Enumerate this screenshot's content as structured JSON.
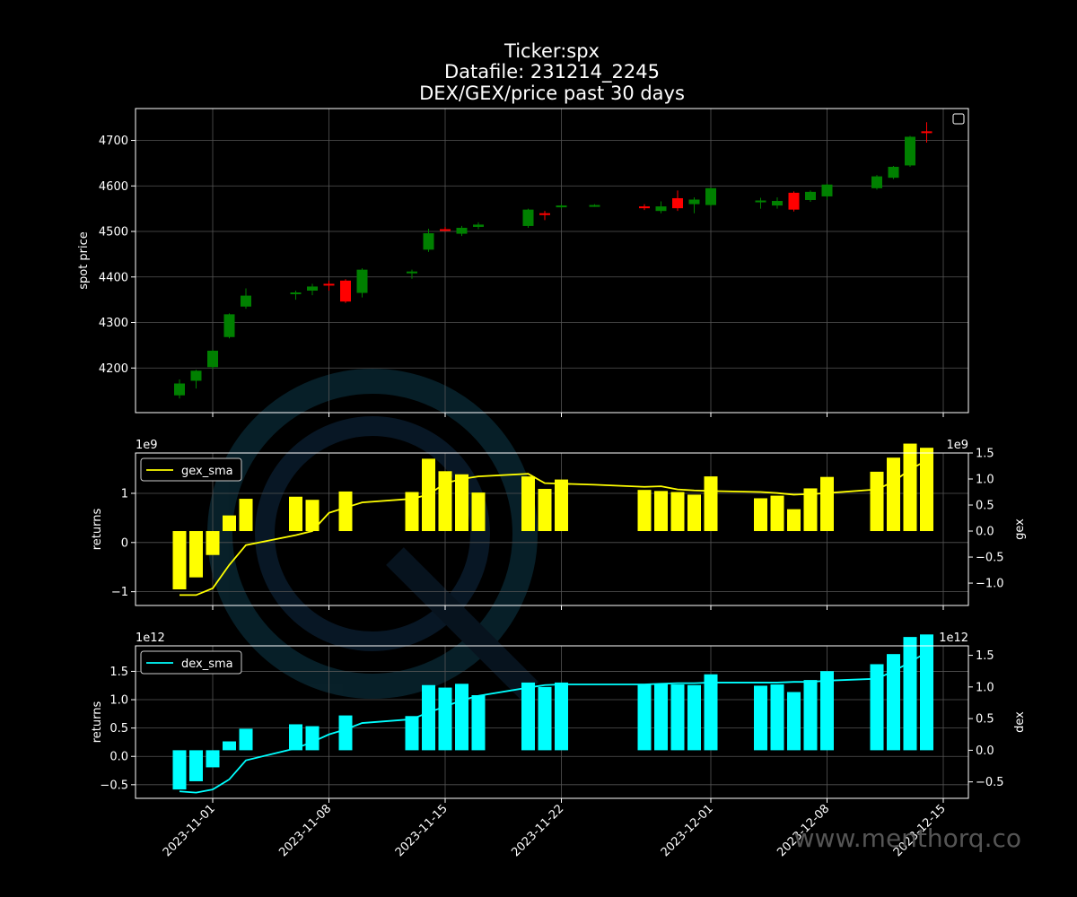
{
  "title": {
    "line1": "Ticker:spx",
    "line2": "Datafile: 231214_2245",
    "line3": "DEX/GEX/price past 30 days"
  },
  "watermark": "www.menthorq.co",
  "colors": {
    "background": "#000000",
    "axes": "#ffffff",
    "grid": "#555555",
    "candle_up": "#008000",
    "candle_down": "#ff0000",
    "gex_bar": "#ffff00",
    "gex_line": "#ffff00",
    "dex_bar": "#00ffff",
    "dex_line": "#00ffff"
  },
  "chart_data": [
    {
      "type": "candlestick",
      "ylabel": "spot price",
      "yticks": [
        4200,
        4300,
        4400,
        4500,
        4600,
        4700
      ],
      "ylim": [
        4102,
        4770
      ],
      "grid": true,
      "legend": "top-right, empty",
      "x_dates": [
        "2023-10-30",
        "2023-10-31",
        "2023-11-01",
        "2023-11-02",
        "2023-11-03",
        "2023-11-06",
        "2023-11-07",
        "2023-11-08",
        "2023-11-09",
        "2023-11-10",
        "2023-11-13",
        "2023-11-14",
        "2023-11-15",
        "2023-11-16",
        "2023-11-17",
        "2023-11-20",
        "2023-11-21",
        "2023-11-22",
        "2023-11-24",
        "2023-11-27",
        "2023-11-28",
        "2023-11-29",
        "2023-11-30",
        "2023-12-01",
        "2023-12-04",
        "2023-12-05",
        "2023-12-06",
        "2023-12-07",
        "2023-12-08",
        "2023-12-11",
        "2023-12-12",
        "2023-12-13",
        "2023-12-14"
      ],
      "open": [
        4140,
        4172,
        4202,
        4268,
        4335,
        4363,
        4370,
        4385,
        4392,
        4365,
        4408,
        4460,
        4505,
        4495,
        4510,
        4512,
        4540,
        4553,
        4556,
        4555,
        4545,
        4573,
        4560,
        4558,
        4564,
        4557,
        4585,
        4569,
        4577,
        4595,
        4618,
        4645,
        4720
      ],
      "close": [
        4166,
        4194,
        4238,
        4318,
        4359,
        4366,
        4379,
        4384,
        4346,
        4416,
        4412,
        4496,
        4502,
        4508,
        4515,
        4548,
        4538,
        4557,
        4558,
        4551,
        4555,
        4551,
        4570,
        4595,
        4568,
        4567,
        4548,
        4587,
        4603,
        4621,
        4642,
        4708,
        4719
      ],
      "high": [
        4175,
        4196,
        4240,
        4320,
        4375,
        4370,
        4385,
        4392,
        4395,
        4419,
        4416,
        4506,
        4510,
        4512,
        4520,
        4550,
        4545,
        4560,
        4560,
        4560,
        4566,
        4590,
        4575,
        4596,
        4574,
        4575,
        4588,
        4590,
        4605,
        4624,
        4644,
        4710,
        4740
      ],
      "low": [
        4133,
        4155,
        4198,
        4265,
        4330,
        4350,
        4360,
        4370,
        4343,
        4355,
        4396,
        4455,
        4500,
        4490,
        4505,
        4508,
        4525,
        4550,
        4554,
        4547,
        4540,
        4545,
        4540,
        4555,
        4550,
        4550,
        4544,
        4565,
        4570,
        4592,
        4615,
        4642,
        4695
      ]
    },
    {
      "type": "bar",
      "ylabel": "returns",
      "ylabel_right": "gex",
      "left_exponent": "1e9",
      "right_exponent": "1e9",
      "yticks_left": [
        -1,
        0,
        1
      ],
      "yticks_right": [
        -1.0,
        -0.5,
        0.0,
        0.5,
        1.0,
        1.5
      ],
      "ylim_left": [
        -1.28,
        1.82
      ],
      "ylim_right": [
        -1.43,
        1.5
      ],
      "grid": true,
      "legend": "top-left",
      "series": [
        {
          "name": "gex_sma",
          "type": "line",
          "values": [
            -1.23,
            -1.23,
            -1.1,
            -0.65,
            -0.27,
            -0.08,
            0.0,
            0.35,
            0.45,
            0.55,
            0.62,
            0.7,
            0.92,
            1.0,
            1.05,
            1.1,
            0.92,
            0.91,
            0.89,
            0.85,
            0.86,
            0.8,
            0.78,
            0.77,
            0.75,
            0.73,
            0.7,
            0.71,
            0.73,
            0.8,
            0.95,
            1.18,
            1.36
          ]
        }
      ],
      "bars": [
        -1.12,
        -0.89,
        -0.46,
        0.3,
        0.62,
        0.66,
        0.6,
        0.76,
        0.75,
        1.39,
        1.15,
        1.09,
        0.74,
        1.05,
        0.81,
        0.99,
        0.79,
        0.77,
        0.75,
        0.7,
        1.05,
        0.63,
        0.68,
        0.42,
        0.82,
        1.04,
        1.14,
        1.41,
        1.68,
        1.6
      ]
    },
    {
      "type": "bar",
      "ylabel": "returns",
      "ylabel_right": "dex",
      "left_exponent": "1e12",
      "right_exponent": "1e12",
      "yticks_left": [
        -0.5,
        0.0,
        0.5,
        1.0,
        1.5
      ],
      "yticks_right": [
        -0.5,
        0.0,
        0.5,
        1.0,
        1.5
      ],
      "ylim_left": [
        -0.74,
        1.95
      ],
      "ylim_right": [
        -0.76,
        1.65
      ],
      "grid": true,
      "legend": "top-left",
      "series": [
        {
          "name": "dex_sma",
          "type": "line",
          "values": [
            -0.65,
            -0.67,
            -0.62,
            -0.46,
            -0.16,
            0.03,
            0.13,
            0.25,
            0.33,
            0.43,
            0.49,
            0.6,
            0.69,
            0.79,
            0.86,
            0.99,
            1.03,
            1.04,
            1.04,
            1.04,
            1.05,
            1.06,
            1.06,
            1.07,
            1.07,
            1.07,
            1.08,
            1.08,
            1.1,
            1.13,
            1.25,
            1.39,
            1.55
          ]
        }
      ],
      "bars": [
        -0.62,
        -0.49,
        -0.27,
        0.14,
        0.34,
        0.41,
        0.38,
        0.55,
        0.54,
        1.03,
        0.99,
        1.05,
        0.87,
        1.07,
        1.0,
        1.07,
        1.04,
        1.05,
        1.04,
        1.03,
        1.2,
        1.02,
        1.04,
        0.92,
        1.11,
        1.25,
        1.36,
        1.52,
        1.79,
        1.83
      ]
    }
  ],
  "x_ticks": [
    "2023-11-01",
    "2023-11-08",
    "2023-11-15",
    "2023-11-22",
    "2023-12-01",
    "2023-12-08",
    "2023-12-15"
  ]
}
